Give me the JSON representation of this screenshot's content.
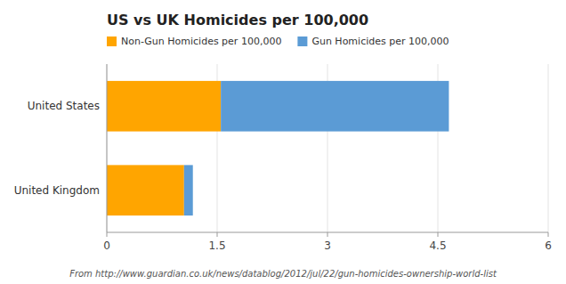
{
  "chart_data": {
    "type": "bar",
    "title": "US vs UK Homicides per 100,000",
    "orientation": "horizontal",
    "stacked": true,
    "categories": [
      "United States",
      "United Kingdom"
    ],
    "series": [
      {
        "name": "Non-Gun Homicides per 100,000",
        "color": "#FFA500",
        "values": [
          1.55,
          1.05
        ]
      },
      {
        "name": "Gun Homicides per 100,000",
        "color": "#5B9BD5",
        "values": [
          3.1,
          0.12
        ]
      }
    ],
    "xlim": [
      0,
      6
    ],
    "xticks": [
      0,
      1.5,
      3,
      4.5,
      6
    ],
    "grid": true,
    "legend": "upper left",
    "annotations": [
      "From http://www.guardian.co.uk/news/datablog/2012/jul/22/gun-homicides-ownership-world-list"
    ]
  }
}
